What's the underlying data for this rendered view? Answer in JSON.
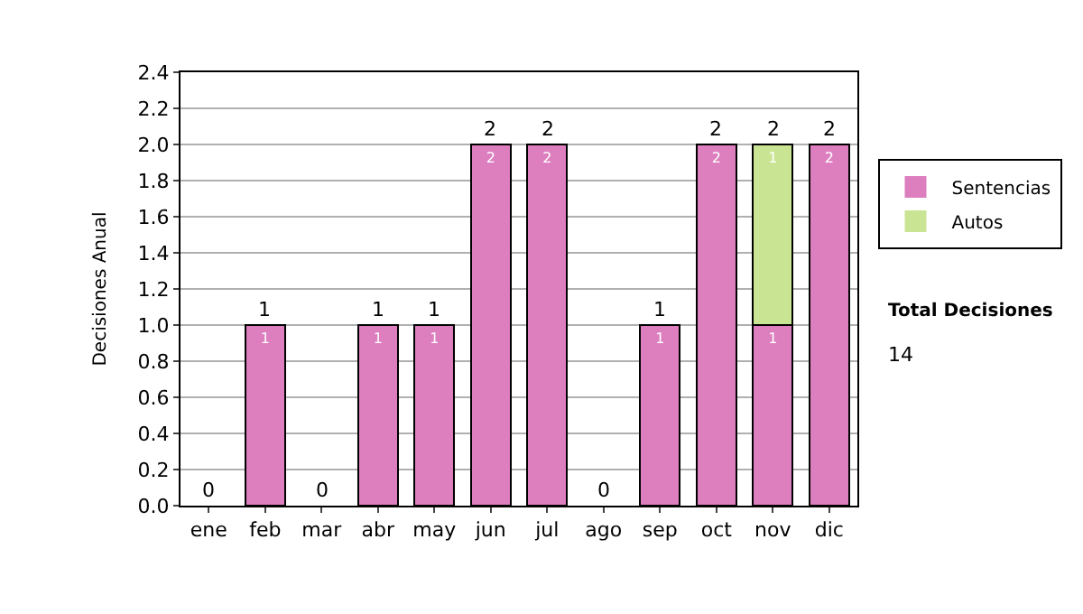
{
  "chart_data": {
    "type": "bar",
    "stacked": true,
    "ylabel": "Decisiones Anual",
    "categories": [
      "ene",
      "feb",
      "mar",
      "abr",
      "may",
      "jun",
      "jul",
      "ago",
      "sep",
      "oct",
      "nov",
      "dic"
    ],
    "series": [
      {
        "name": "Sentencias",
        "color": "#dd7fbf",
        "values": [
          0,
          1,
          0,
          1,
          1,
          2,
          2,
          0,
          1,
          2,
          1,
          2
        ],
        "value_labels": [
          null,
          "1",
          null,
          "1",
          "1",
          "2",
          "2",
          null,
          "1",
          "2",
          "1",
          "2"
        ]
      },
      {
        "name": "Autos",
        "color": "#c9e593",
        "values": [
          0,
          0,
          0,
          0,
          0,
          0,
          0,
          0,
          0,
          0,
          1,
          0
        ],
        "value_labels": [
          null,
          null,
          null,
          null,
          null,
          null,
          null,
          null,
          null,
          null,
          "1",
          null
        ]
      }
    ],
    "totals": [
      "0",
      "1",
      "0",
      "1",
      "1",
      "2",
      "2",
      "0",
      "1",
      "2",
      "2",
      "2"
    ],
    "ylim": [
      0,
      2.4
    ],
    "yticks": [
      {
        "value": 0,
        "label": "0.0"
      },
      {
        "value": 0.2,
        "label": "0.2"
      },
      {
        "value": 0.4,
        "label": "0.4"
      },
      {
        "value": 0.6,
        "label": "0.6"
      },
      {
        "value": 0.8,
        "label": "0.8"
      },
      {
        "value": 1,
        "label": "1.0"
      },
      {
        "value": 1.2,
        "label": "1.2"
      },
      {
        "value": 1.4,
        "label": "1.4"
      },
      {
        "value": 1.6,
        "label": "1.6"
      },
      {
        "value": 1.8,
        "label": "1.8"
      },
      {
        "value": 2,
        "label": "2.0"
      },
      {
        "value": 2.2,
        "label": "2.2"
      },
      {
        "value": 2.4,
        "label": "2.4"
      }
    ],
    "grid": "y",
    "legend": "top right",
    "annotations": [
      "Total Decisiones",
      "14"
    ]
  }
}
